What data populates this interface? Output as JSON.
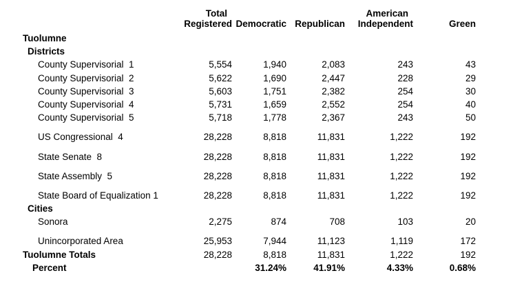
{
  "colors": {
    "text": "#000000",
    "background": "#ffffff"
  },
  "table": {
    "columns": [
      {
        "top": "Total",
        "bottom": "Registered"
      },
      {
        "top": "",
        "bottom": "Democratic"
      },
      {
        "top": "",
        "bottom": "Republican"
      },
      {
        "top": "American",
        "bottom": "Independent"
      },
      {
        "top": "",
        "bottom": "Green"
      }
    ],
    "rows": [
      {
        "label": "Tuolumne",
        "bold": true,
        "valuesBold": false,
        "indent": 1,
        "gap": false,
        "values": [
          "",
          "",
          "",
          "",
          ""
        ]
      },
      {
        "label": "Districts",
        "bold": true,
        "valuesBold": false,
        "indent": 2,
        "gap": false,
        "values": [
          "",
          "",
          "",
          "",
          ""
        ]
      },
      {
        "label": "County Supervisorial  1",
        "bold": false,
        "valuesBold": false,
        "indent": 4,
        "gap": false,
        "values": [
          "5,554",
          "1,940",
          "2,083",
          "243",
          "43"
        ]
      },
      {
        "label": "County Supervisorial  2",
        "bold": false,
        "valuesBold": false,
        "indent": 4,
        "gap": false,
        "values": [
          "5,622",
          "1,690",
          "2,447",
          "228",
          "29"
        ]
      },
      {
        "label": "County Supervisorial  3",
        "bold": false,
        "valuesBold": false,
        "indent": 4,
        "gap": false,
        "values": [
          "5,603",
          "1,751",
          "2,382",
          "254",
          "30"
        ]
      },
      {
        "label": "County Supervisorial  4",
        "bold": false,
        "valuesBold": false,
        "indent": 4,
        "gap": false,
        "values": [
          "5,731",
          "1,659",
          "2,552",
          "254",
          "40"
        ]
      },
      {
        "label": "County Supervisorial  5",
        "bold": false,
        "valuesBold": false,
        "indent": 4,
        "gap": false,
        "values": [
          "5,718",
          "1,778",
          "2,367",
          "243",
          "50"
        ]
      },
      {
        "label": "US Congressional  4",
        "bold": false,
        "valuesBold": false,
        "indent": 4,
        "gap": true,
        "values": [
          "28,228",
          "8,818",
          "11,831",
          "1,222",
          "192"
        ]
      },
      {
        "label": "State Senate  8",
        "bold": false,
        "valuesBold": false,
        "indent": 4,
        "gap": true,
        "values": [
          "28,228",
          "8,818",
          "11,831",
          "1,222",
          "192"
        ]
      },
      {
        "label": "State Assembly  5",
        "bold": false,
        "valuesBold": false,
        "indent": 4,
        "gap": true,
        "values": [
          "28,228",
          "8,818",
          "11,831",
          "1,222",
          "192"
        ]
      },
      {
        "label": "State Board of Equalization 1",
        "bold": false,
        "valuesBold": false,
        "indent": 4,
        "gap": true,
        "values": [
          "28,228",
          "8,818",
          "11,831",
          "1,222",
          "192"
        ]
      },
      {
        "label": "Cities",
        "bold": true,
        "valuesBold": false,
        "indent": 2,
        "gap": false,
        "values": [
          "",
          "",
          "",
          "",
          ""
        ]
      },
      {
        "label": "Sonora",
        "bold": false,
        "valuesBold": false,
        "indent": 4,
        "gap": false,
        "values": [
          "2,275",
          "874",
          "708",
          "103",
          "20"
        ]
      },
      {
        "label": "Unincorporated Area",
        "bold": false,
        "valuesBold": false,
        "indent": 4,
        "gap": true,
        "values": [
          "25,953",
          "7,944",
          "11,123",
          "1,119",
          "172"
        ]
      },
      {
        "label": "Tuolumne Totals",
        "bold": true,
        "valuesBold": false,
        "indent": 1,
        "gap": false,
        "values": [
          "28,228",
          "8,818",
          "11,831",
          "1,222",
          "192"
        ]
      },
      {
        "label": "Percent",
        "bold": true,
        "valuesBold": true,
        "indent": 3,
        "gap": false,
        "values": [
          "",
          "31.24%",
          "41.91%",
          "4.33%",
          "0.68%"
        ]
      }
    ]
  }
}
